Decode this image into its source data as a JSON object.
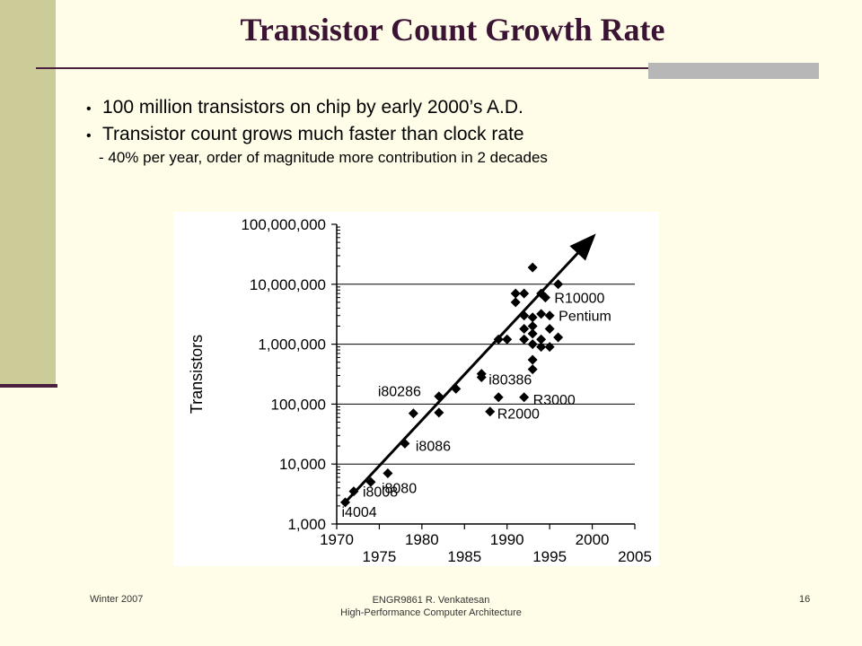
{
  "slide": {
    "title": "Transistor Count Growth Rate",
    "bullets": [
      "100 million transistors on chip by early 2000’s A.D.",
      "Transistor count grows much faster than clock rate"
    ],
    "sub_bullet": "- 40% per year, order of magnitude more contribution in 2 decades"
  },
  "footer": {
    "left": "Winter 2007",
    "center_line1": "ENGR9861    R. Venkatesan",
    "center_line2": "High-Performance Computer Architecture",
    "page": "16"
  },
  "chart_data": {
    "type": "scatter",
    "title": "",
    "xlabel": "",
    "ylabel": "Transistors",
    "y_scale": "log",
    "xlim": [
      1970,
      2005
    ],
    "ylim": [
      1000,
      100000000
    ],
    "grid": true,
    "x_ticks_top": [
      "1970",
      "1980",
      "1990",
      "2000"
    ],
    "x_ticks_bottom": [
      "1975",
      "1985",
      "1995",
      "2005"
    ],
    "y_ticks": [
      {
        "value": 1000,
        "label": "1,000"
      },
      {
        "value": 10000,
        "label": "10,000"
      },
      {
        "value": 100000,
        "label": "100,000"
      },
      {
        "value": 1000000,
        "label": "1,000,000"
      },
      {
        "value": 10000000,
        "label": "10,000,000"
      },
      {
        "value": 100000000,
        "label": "100,000,000"
      }
    ],
    "trend": {
      "x": [
        1971,
        2000
      ],
      "y": [
        2300,
        60000000
      ]
    },
    "points": [
      {
        "x": 1971,
        "y": 2300
      },
      {
        "x": 1972,
        "y": 3500
      },
      {
        "x": 1974,
        "y": 5000
      },
      {
        "x": 1976,
        "y": 7000
      },
      {
        "x": 1978,
        "y": 22000
      },
      {
        "x": 1979,
        "y": 70000
      },
      {
        "x": 1982,
        "y": 135000
      },
      {
        "x": 1982,
        "y": 72000
      },
      {
        "x": 1984,
        "y": 180000
      },
      {
        "x": 1987,
        "y": 320000
      },
      {
        "x": 1987,
        "y": 280000
      },
      {
        "x": 1988,
        "y": 75000
      },
      {
        "x": 1989,
        "y": 130000
      },
      {
        "x": 1989,
        "y": 1200000
      },
      {
        "x": 1990,
        "y": 1200000
      },
      {
        "x": 1991,
        "y": 5000000
      },
      {
        "x": 1991,
        "y": 7000000
      },
      {
        "x": 1992,
        "y": 7000000
      },
      {
        "x": 1992,
        "y": 3000000
      },
      {
        "x": 1992,
        "y": 1800000
      },
      {
        "x": 1992,
        "y": 1200000
      },
      {
        "x": 1992,
        "y": 130000
      },
      {
        "x": 1993,
        "y": 2800000
      },
      {
        "x": 1993,
        "y": 2000000
      },
      {
        "x": 1993,
        "y": 1500000
      },
      {
        "x": 1993,
        "y": 1000000
      },
      {
        "x": 1993,
        "y": 550000
      },
      {
        "x": 1993,
        "y": 380000
      },
      {
        "x": 1993,
        "y": 19000000
      },
      {
        "x": 1994,
        "y": 3200000
      },
      {
        "x": 1994,
        "y": 1200000
      },
      {
        "x": 1994,
        "y": 900000
      },
      {
        "x": 1994,
        "y": 7000000
      },
      {
        "x": 1994.5,
        "y": 6000000
      },
      {
        "x": 1995,
        "y": 1800000
      },
      {
        "x": 1995,
        "y": 900000
      },
      {
        "x": 1995,
        "y": 3000000
      },
      {
        "x": 1996,
        "y": 10000000
      },
      {
        "x": 1996,
        "y": 1300000
      }
    ],
    "labels": [
      {
        "text": "i4004",
        "x": 1971,
        "y": 2300
      },
      {
        "text": "i8008",
        "x": 1972,
        "y": 3500
      },
      {
        "text": "i8080",
        "x": 1974,
        "y": 5000
      },
      {
        "text": "i8086",
        "x": 1978,
        "y": 22000
      },
      {
        "text": "i80286",
        "x": 1982,
        "y": 135000
      },
      {
        "text": "i80386",
        "x": 1987,
        "y": 320000
      },
      {
        "text": "R2000",
        "x": 1988,
        "y": 75000
      },
      {
        "text": "R3000",
        "x": 1992,
        "y": 130000
      },
      {
        "text": "R10000",
        "x": 1994.5,
        "y": 6000000
      },
      {
        "text": "Pentium",
        "x": 1995,
        "y": 3000000
      }
    ]
  }
}
